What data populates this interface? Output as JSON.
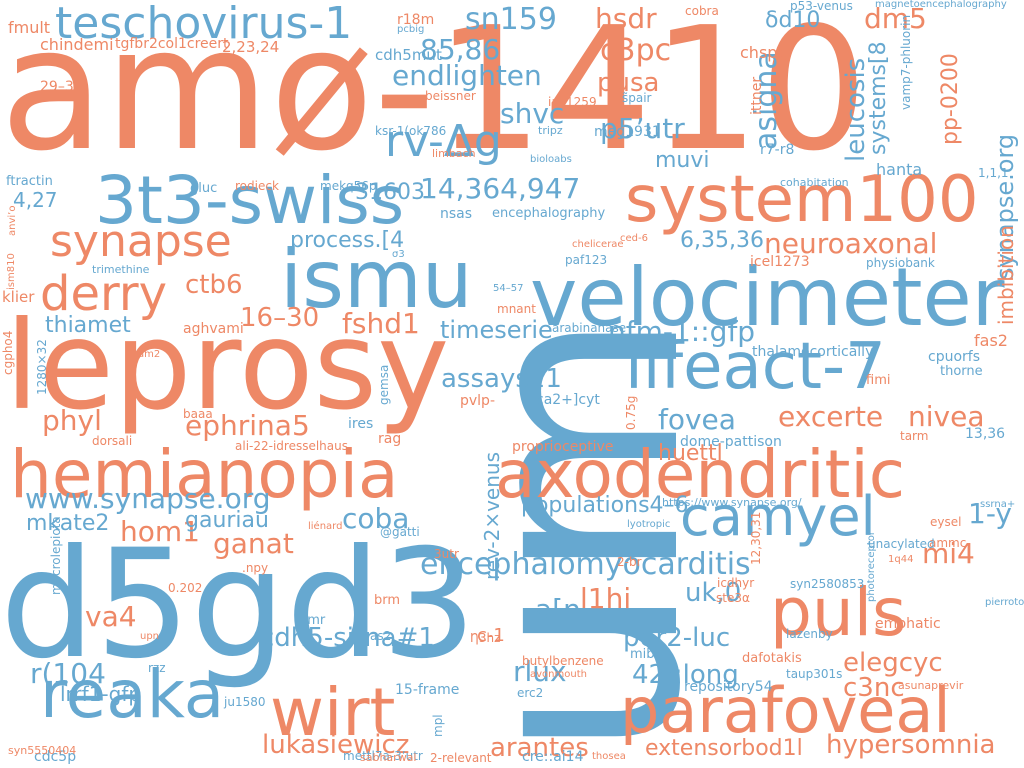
{
  "palette": {
    "orange": "#ee8866",
    "blue": "#66a8d0"
  },
  "words": [
    "amø-1410",
    "um",
    "d5gd3",
    "leprosy",
    "velocimeter",
    "hemianopia",
    "axodendritic",
    "3t3-swiss",
    "system100",
    "ismu",
    "lifeact-7",
    "puls",
    "parafoveal",
    "reaka",
    "camyel",
    "wirt",
    "teschovirus-1",
    "synapse",
    "rv-Δg",
    "derry",
    "encephalomyocarditis",
    "www.synapse.org",
    "sn159",
    "dm5",
    "endlighten",
    "85,86",
    "c3pc",
    "hsdr",
    "pusa",
    "shvc",
    "p5’utr",
    "muvi",
    "asigna",
    "14,364,947",
    "process.[4",
    "neuroaxonal",
    "6,35,36",
    "ctb6",
    "thiamet",
    "16–30",
    "fshd1",
    "timeserie",
    "nfm-1::gfp",
    "assays21",
    "fovea",
    "excerte",
    "nivea",
    "phyl",
    "ephrina5",
    "coba",
    "hom1",
    "ganat",
    "mkate2",
    "gauriau",
    "42::long",
    "per2-luc",
    "a[n",
    "l1hi",
    "uk,0",
    "mi4",
    "elegcyc",
    "va4",
    "r(104",
    "cdh5-sirna#1",
    "rlux",
    "c3nc",
    "lukasiewicz",
    "arantes",
    "extensorbod1l",
    "hypersomnia",
    "lrrf1-gfp",
    "huettl",
    "4,27",
    "populations4–6",
    "c-1",
    "synapse.org",
    "leucosis",
    "systems[8",
    "pp-0200",
    "imbibition",
    "1-y",
    "rev-2×venus",
    "31603",
    "fmult",
    "chindemi",
    "tgfbr2col1creert",
    "2,23,24",
    "r18m",
    "pcbig",
    "cdh5mut",
    "δd10",
    "cobra",
    "p53-venus",
    "magnetoencephalography",
    "chspg",
    "ittner",
    "vamp7-phluorin",
    "29–30",
    "beissner",
    "iaa1259",
    "s̃pair",
    "ksr-1(ok786",
    "tripz",
    "meg1931",
    "r7-r8",
    "limbach",
    "bioloabs",
    "ftractin",
    "gluc",
    "rodieck",
    "mekq56p",
    "cohabitation",
    "1,1,1",
    "nsas",
    "encephalography",
    "hanta",
    "ced-6",
    "paf123",
    "chelicerae",
    "icel1273",
    "physiobank",
    "trimethine",
    "klier",
    "54–57",
    "mnant",
    "arabinanase",
    "aghvami",
    "am2",
    "thalamocortically",
    "fas2",
    "cpuorfs",
    "thorne",
    "fimi",
    "ires",
    "pvlp-",
    "ca2+]cyt",
    "proprioceptive",
    "dome-pattison",
    "tarm",
    "13,36",
    "rag",
    "dorsali",
    "ali-22-idresselhaus",
    "baaa",
    "gemsa",
    "1280×32",
    "cgpho4",
    "ism810",
    "anvi’o",
    "σ3",
    "0.75g",
    "https://www.synapse.org/",
    "lyotropic",
    "liénard",
    "@gatti",
    "ssrna+",
    "eysel",
    "ammc",
    "1q44",
    "unacylated",
    "syn2580853",
    "icdhyr",
    "pierroton",
    "ste3α",
    "photoreceptor",
    "emphatic",
    "lazenby",
    "dafotakis",
    "mibg",
    "taup301s",
    "butylbenzene",
    "avonmouth",
    "repository54",
    "asunaprevir",
    "15-frame",
    "erc2",
    "2-relevant",
    "thosea",
    "cre::ai14",
    "mettl7a-3’utr",
    "cdc5p",
    "ju1580",
    "mpl",
    "sabharwal",
    "upn",
    "Ƞ3hz",
    "as2",
    "iimr",
    "brm",
    "0.202",
    "rzz",
    "syn5550404",
    ".npy",
    "macrolepiota",
    "3utr",
    "2-br",
    "12,30,31"
  ]
}
